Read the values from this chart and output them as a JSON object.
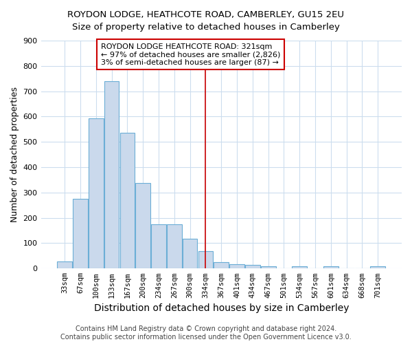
{
  "title": "ROYDON LODGE, HEATHCOTE ROAD, CAMBERLEY, GU15 2EU",
  "subtitle": "Size of property relative to detached houses in Camberley",
  "xlabel": "Distribution of detached houses by size in Camberley",
  "ylabel": "Number of detached properties",
  "bar_labels": [
    "33sqm",
    "67sqm",
    "100sqm",
    "133sqm",
    "167sqm",
    "200sqm",
    "234sqm",
    "267sqm",
    "300sqm",
    "334sqm",
    "367sqm",
    "401sqm",
    "434sqm",
    "467sqm",
    "501sqm",
    "534sqm",
    "567sqm",
    "601sqm",
    "634sqm",
    "668sqm",
    "701sqm"
  ],
  "bar_values": [
    27,
    275,
    592,
    740,
    535,
    338,
    175,
    175,
    118,
    68,
    25,
    17,
    15,
    8,
    0,
    9,
    0,
    8,
    0,
    0,
    8
  ],
  "bar_color": "#cad9ec",
  "bar_edge_color": "#6baed6",
  "vline_x_idx": 9,
  "vline_color": "#cc0000",
  "annotation_text": "ROYDON LODGE HEATHCOTE ROAD: 321sqm\n← 97% of detached houses are smaller (2,826)\n3% of semi-detached houses are larger (87) →",
  "annotation_box_color": "#ffffff",
  "annotation_box_edge": "#cc0000",
  "ylim": [
    0,
    900
  ],
  "yticks": [
    0,
    100,
    200,
    300,
    400,
    500,
    600,
    700,
    800,
    900
  ],
  "footer": "Contains HM Land Registry data © Crown copyright and database right 2024.\nContains public sector information licensed under the Open Government Licence v3.0.",
  "background_color": "#ffffff",
  "plot_background": "#ffffff",
  "title_fontsize": 9.5,
  "subtitle_fontsize": 9.5,
  "xlabel_fontsize": 10,
  "ylabel_fontsize": 9,
  "footer_fontsize": 7,
  "grid_color": "#ccddee"
}
